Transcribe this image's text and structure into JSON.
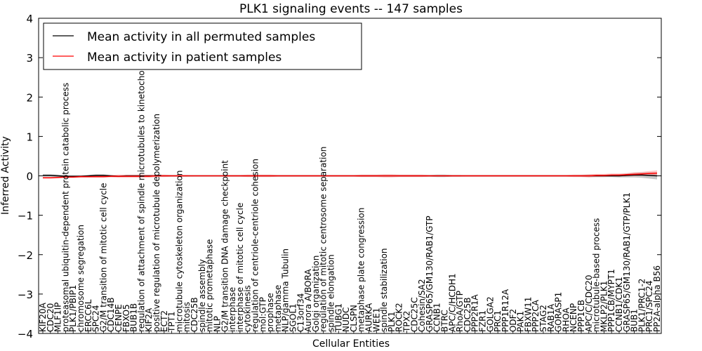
{
  "chart_data": {
    "type": "line",
    "title": "PLK1 signaling events -- 147 samples",
    "xlabel": "Cellular Entities",
    "ylabel": "Inferred Activity",
    "ylim": [
      -4,
      4
    ],
    "yticks": [
      -4,
      -3,
      -2,
      -1,
      0,
      1,
      2,
      3,
      4
    ],
    "ytick_labels": [
      "−4",
      "−3",
      "−2",
      "−1",
      "0",
      "1",
      "2",
      "3",
      "4"
    ],
    "legend_position": "top-left",
    "categories": [
      "KIF20A",
      "CDC20",
      "MLF1IP",
      "proteasomal ubiquitin-dependent protein catabolic process",
      "PLK1/PBIP1",
      "chromosome segregation",
      "ERCC6L",
      "SPC24",
      "G2/M transition of mitotic cell cycle",
      "CDC14B",
      "CENPE",
      "FBXO5",
      "BUB1B",
      "regulation of attachment of spindle microtubules to kinetochore",
      "KIF2A",
      "positive regulation of microtubule depolymerization",
      "ECT2",
      "TPT1",
      "microtubule cytoskeleton organization",
      "mitosis",
      "CDC25B",
      "spindle assembly",
      "mitotic prometaphase",
      "NLP",
      "G2/M transition DNA damage checkpoint",
      "interphase",
      "interphase of mitotic cell cycle",
      "cytokinesis",
      "regulation of centriole-centriole cohesion",
      "mol:GTP",
      "prophase",
      "metaphase",
      "NLP/gamma Tubulin",
      "SGOL1",
      "C13orf34",
      "Aurora A/BORA",
      "Golgi organization",
      "regulation of mitotic centrosome separation",
      "spindle elongation",
      "TUBG1",
      "NUDC",
      "CLSPN",
      "metaphase plate congression",
      "AURKA",
      "WEE1",
      "spindle stabilization",
      "PLK1",
      "ROCK2",
      "TPX2",
      "CDC25C",
      "Cohesin/SA2",
      "GRASP65/GM130/RAB1/GTP",
      "CCNB1",
      "BTRC",
      "APC/C/HCDH1",
      "RhoA/GTP",
      "CDC25B",
      "PPP2R1A",
      "FZR1",
      "GOLGA2",
      "PRC1",
      "PPP1R12A",
      "ODF2",
      "PAK1",
      "FBXW11",
      "PPP2CA",
      "STAG2",
      "RAB1A",
      "GORASP1",
      "RHOA",
      "NCENP",
      "PPP1CB",
      "APC/C/CDC20",
      "microtubule-based process",
      "MKLP2/PLK1",
      "PPP1CB/MYPT1",
      "CCNB1/CDK1",
      "GRASP65/GM130/RAB1/GTP/PLK1",
      "BUB1",
      "PLK1/PRC1-2",
      "PRC1/SPC24",
      "PP2A-alpha B56"
    ],
    "series": [
      {
        "name": "Mean activity in all permuted samples",
        "color": "#000000",
        "values": [
          0.01,
          0.01,
          0.0,
          -0.01,
          -0.01,
          -0.01,
          0.0,
          0.01,
          0.01,
          0.0,
          -0.01,
          0.0,
          0.0,
          0.0,
          0.0,
          0.0,
          0.0,
          0.0,
          0.0,
          0.0,
          0.0,
          0.0,
          0.0,
          0.0,
          0.0,
          0.0,
          0.0,
          0.0,
          0.0,
          0.0,
          0.0,
          0.0,
          0.0,
          0.0,
          0.0,
          0.0,
          0.0,
          0.0,
          0.0,
          0.0,
          0.0,
          0.0,
          0.0,
          0.0,
          0.0,
          0.0,
          0.0,
          0.0,
          0.0,
          0.0,
          0.0,
          0.0,
          0.0,
          0.0,
          0.0,
          0.0,
          0.0,
          0.0,
          0.0,
          0.0,
          0.0,
          0.0,
          0.0,
          0.0,
          0.0,
          0.0,
          0.0,
          0.0,
          0.0,
          0.0,
          0.0,
          0.0,
          0.0,
          0.0,
          0.0,
          0.0,
          0.0,
          0.01,
          0.02,
          0.02,
          0.01,
          0.0
        ]
      },
      {
        "name": "Mean activity in patient samples",
        "color": "#ff0000",
        "values": [
          -0.05,
          -0.05,
          -0.04,
          -0.03,
          -0.03,
          -0.02,
          -0.02,
          -0.02,
          -0.02,
          -0.01,
          -0.01,
          -0.01,
          -0.01,
          -0.01,
          -0.01,
          0.0,
          0.0,
          0.0,
          0.0,
          0.0,
          0.0,
          0.0,
          0.0,
          0.0,
          0.0,
          0.0,
          0.0,
          0.0,
          0.0,
          0.0,
          0.0,
          0.0,
          0.0,
          0.0,
          0.0,
          0.0,
          0.0,
          0.0,
          0.0,
          0.0,
          0.0,
          0.0,
          0.0,
          0.0,
          0.0,
          0.0,
          0.0,
          0.0,
          0.0,
          0.0,
          0.0,
          0.0,
          0.0,
          0.0,
          0.0,
          0.0,
          0.0,
          0.0,
          0.0,
          0.0,
          0.0,
          0.0,
          0.0,
          0.0,
          0.0,
          0.0,
          0.0,
          0.0,
          0.0,
          0.0,
          0.0,
          0.0,
          0.0,
          0.01,
          0.01,
          0.02,
          0.02,
          0.03,
          0.04,
          0.05,
          0.06,
          0.07
        ]
      }
    ],
    "bands": [
      {
        "series": "Mean activity in all permuted samples",
        "color": "#999999",
        "spread": [
          0.03,
          0.03,
          0.03,
          0.02,
          0.02,
          0.02,
          0.02,
          0.03,
          0.03,
          0.02,
          0.02,
          0.01,
          0.01,
          0.01,
          0.01,
          0.01,
          0.01,
          0.01,
          0.01,
          0.01,
          0.01,
          0.01,
          0.01,
          0.01,
          0.01,
          0.01,
          0.01,
          0.01,
          0.01,
          0.01,
          0.01,
          0.01,
          0.01,
          0.01,
          0.01,
          0.01,
          0.01,
          0.01,
          0.01,
          0.01,
          0.01,
          0.01,
          0.02,
          0.02,
          0.02,
          0.02,
          0.02,
          0.02,
          0.02,
          0.02,
          0.02,
          0.02,
          0.03,
          0.03,
          0.02,
          0.02,
          0.01,
          0.01,
          0.01,
          0.01,
          0.01,
          0.01,
          0.01,
          0.01,
          0.01,
          0.01,
          0.01,
          0.01,
          0.01,
          0.01,
          0.01,
          0.02,
          0.03,
          0.03,
          0.03,
          0.03,
          0.04,
          0.05,
          0.06,
          0.07,
          0.08,
          0.09
        ]
      },
      {
        "series": "Mean activity in patient samples",
        "color": "#ff9999",
        "spread": [
          0.02,
          0.02,
          0.02,
          0.02,
          0.02,
          0.03,
          0.03,
          0.03,
          0.03,
          0.03,
          0.04,
          0.04,
          0.04,
          0.04,
          0.04,
          0.03,
          0.03,
          0.02,
          0.02,
          0.02,
          0.01,
          0.01,
          0.01,
          0.01,
          0.02,
          0.02,
          0.02,
          0.03,
          0.03,
          0.03,
          0.03,
          0.02,
          0.02,
          0.02,
          0.02,
          0.02,
          0.02,
          0.02,
          0.02,
          0.02,
          0.02,
          0.02,
          0.03,
          0.03,
          0.03,
          0.04,
          0.04,
          0.03,
          0.03,
          0.03,
          0.03,
          0.02,
          0.02,
          0.02,
          0.02,
          0.02,
          0.02,
          0.02,
          0.02,
          0.02,
          0.02,
          0.02,
          0.02,
          0.02,
          0.02,
          0.02,
          0.02,
          0.02,
          0.02,
          0.02,
          0.03,
          0.03,
          0.04,
          0.04,
          0.04,
          0.04,
          0.04,
          0.04,
          0.05,
          0.05,
          0.06,
          0.07
        ]
      }
    ]
  }
}
